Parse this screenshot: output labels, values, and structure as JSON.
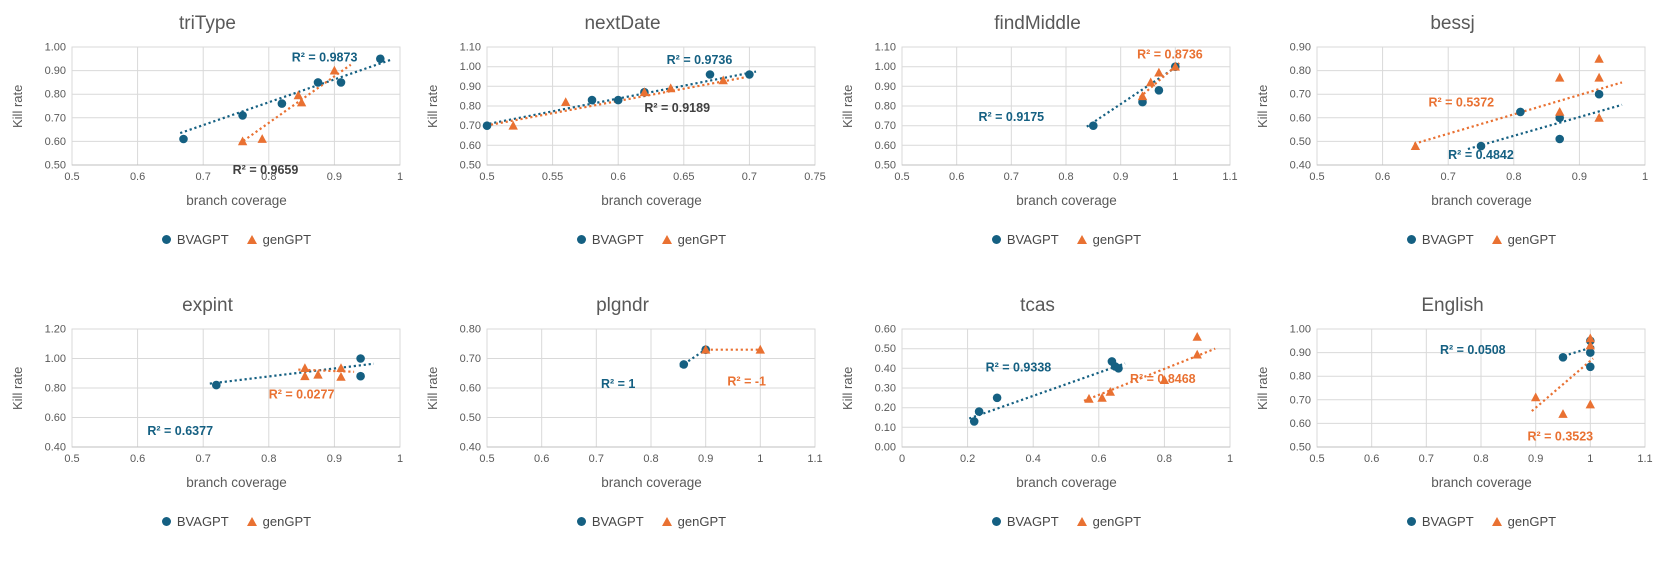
{
  "palette": {
    "bvagpt_blue": "#156082",
    "gengpt_orange": "#E97132",
    "r2_dark_gray": "#404040",
    "grid_line": "#D9D9D9",
    "axis_line": "#BFBFBF",
    "label_gray": "#595959",
    "legend_text": "#474747",
    "background": "#FFFFFF"
  },
  "chart_data": [
    {
      "type": "scatter",
      "title": "triType",
      "xlabel": "branch coverage",
      "ylabel": "Kill rate",
      "xlim": [
        0.5,
        1.0
      ],
      "ylim": [
        0.5,
        1.0
      ],
      "xticks": [
        "0.5",
        "0.6",
        "0.7",
        "0.8",
        "0.9",
        "1"
      ],
      "yticks": [
        "0.50",
        "0.60",
        "0.70",
        "0.80",
        "0.90",
        "1.00"
      ],
      "grid": true,
      "legend_position": "bottom",
      "series": [
        {
          "name": "BVAGPT",
          "marker": "circle",
          "color": "#156082",
          "points": [
            [
              0.67,
              0.61
            ],
            [
              0.76,
              0.71
            ],
            [
              0.82,
              0.76
            ],
            [
              0.875,
              0.85
            ],
            [
              0.91,
              0.85
            ],
            [
              0.97,
              0.95
            ]
          ],
          "trend": {
            "x1": 0.665,
            "y1": 0.635,
            "x2": 0.985,
            "y2": 0.945
          },
          "r2": {
            "text": "R² = 0.9873",
            "x": 0.885,
            "y": 0.955,
            "color": "#156082"
          }
        },
        {
          "name": "genGPT",
          "marker": "triangle",
          "color": "#E97132",
          "points": [
            [
              0.76,
              0.6
            ],
            [
              0.79,
              0.61
            ],
            [
              0.845,
              0.795
            ],
            [
              0.85,
              0.765
            ],
            [
              0.9,
              0.9
            ]
          ],
          "trend": {
            "x1": 0.755,
            "y1": 0.59,
            "x2": 0.925,
            "y2": 0.925
          },
          "r2": {
            "text": "R² = 0.9659",
            "x": 0.795,
            "y": 0.478,
            "color": "#404040"
          }
        }
      ]
    },
    {
      "type": "scatter",
      "title": "nextDate",
      "xlabel": "branch coverage",
      "ylabel": "Kill rate",
      "xlim": [
        0.5,
        0.75
      ],
      "ylim": [
        0.5,
        1.1
      ],
      "xticks": [
        "0.5",
        "0.55",
        "0.6",
        "0.65",
        "0.7",
        "0.75"
      ],
      "yticks": [
        "0.50",
        "0.60",
        "0.70",
        "0.80",
        "0.90",
        "1.00",
        "1.10"
      ],
      "grid": true,
      "legend_position": "bottom",
      "series": [
        {
          "name": "BVAGPT",
          "marker": "circle",
          "color": "#156082",
          "points": [
            [
              0.5,
              0.7
            ],
            [
              0.58,
              0.83
            ],
            [
              0.6,
              0.83
            ],
            [
              0.62,
              0.87
            ],
            [
              0.67,
              0.96
            ],
            [
              0.7,
              0.96
            ]
          ],
          "trend": {
            "x1": 0.498,
            "y1": 0.705,
            "x2": 0.705,
            "y2": 0.975
          },
          "r2": {
            "text": "R² = 0.9736",
            "x": 0.662,
            "y": 1.035,
            "color": "#156082"
          }
        },
        {
          "name": "genGPT",
          "marker": "triangle",
          "color": "#E97132",
          "points": [
            [
              0.52,
              0.7
            ],
            [
              0.56,
              0.82
            ],
            [
              0.62,
              0.87
            ],
            [
              0.64,
              0.89
            ],
            [
              0.68,
              0.93
            ]
          ],
          "trend": {
            "x1": 0.503,
            "y1": 0.705,
            "x2": 0.7,
            "y2": 0.95
          },
          "r2": {
            "text": "R² = 0.9189",
            "x": 0.645,
            "y": 0.79,
            "color": "#404040"
          }
        }
      ]
    },
    {
      "type": "scatter",
      "title": "findMiddle",
      "xlabel": "branch coverage",
      "ylabel": "Kill rate",
      "xlim": [
        0.5,
        1.1
      ],
      "ylim": [
        0.5,
        1.1
      ],
      "xticks": [
        "0.5",
        "0.6",
        "0.7",
        "0.8",
        "0.9",
        "1",
        "1.1"
      ],
      "yticks": [
        "0.50",
        "0.60",
        "0.70",
        "0.80",
        "0.90",
        "1.00",
        "1.10"
      ],
      "grid": true,
      "legend_position": "bottom",
      "series": [
        {
          "name": "BVAGPT",
          "marker": "circle",
          "color": "#156082",
          "points": [
            [
              0.85,
              0.7
            ],
            [
              0.94,
              0.82
            ],
            [
              0.97,
              0.88
            ],
            [
              1.0,
              1.0
            ]
          ],
          "trend": {
            "x1": 0.838,
            "y1": 0.695,
            "x2": 1.005,
            "y2": 1.005
          },
          "r2": {
            "text": "R² = 0.9175",
            "x": 0.7,
            "y": 0.745,
            "color": "#156082"
          }
        },
        {
          "name": "genGPT",
          "marker": "triangle",
          "color": "#E97132",
          "points": [
            [
              0.94,
              0.85
            ],
            [
              0.955,
              0.92
            ],
            [
              0.97,
              0.97
            ],
            [
              1.0,
              1.0
            ]
          ],
          "trend": {
            "x1": 0.935,
            "y1": 0.845,
            "x2": 1.008,
            "y2": 1.02
          },
          "r2": {
            "text": "R² = 0.8736",
            "x": 0.99,
            "y": 1.063,
            "color": "#E97132"
          }
        }
      ]
    },
    {
      "type": "scatter",
      "title": "bessj",
      "xlabel": "branch coverage",
      "ylabel": "Kill rate",
      "xlim": [
        0.5,
        1.0
      ],
      "ylim": [
        0.4,
        0.9
      ],
      "xticks": [
        "0.5",
        "0.6",
        "0.7",
        "0.8",
        "0.9",
        "1"
      ],
      "yticks": [
        "0.40",
        "0.50",
        "0.60",
        "0.70",
        "0.80",
        "0.90"
      ],
      "grid": true,
      "legend_position": "bottom",
      "series": [
        {
          "name": "BVAGPT",
          "marker": "circle",
          "color": "#156082",
          "points": [
            [
              0.75,
              0.48
            ],
            [
              0.81,
              0.625
            ],
            [
              0.87,
              0.6
            ],
            [
              0.87,
              0.51
            ],
            [
              0.93,
              0.7
            ]
          ],
          "trend": {
            "x1": 0.73,
            "y1": 0.468,
            "x2": 0.965,
            "y2": 0.655
          },
          "r2": {
            "text": "R² = 0.4842",
            "x": 0.75,
            "y": 0.443,
            "color": "#156082"
          }
        },
        {
          "name": "genGPT",
          "marker": "triangle",
          "color": "#E97132",
          "points": [
            [
              0.65,
              0.48
            ],
            [
              0.87,
              0.77
            ],
            [
              0.87,
              0.625
            ],
            [
              0.93,
              0.85
            ],
            [
              0.93,
              0.77
            ],
            [
              0.93,
              0.6
            ]
          ],
          "trend": {
            "x1": 0.648,
            "y1": 0.49,
            "x2": 0.965,
            "y2": 0.75
          },
          "r2": {
            "text": "R² = 0.5372",
            "x": 0.72,
            "y": 0.665,
            "color": "#E97132"
          }
        }
      ]
    },
    {
      "type": "scatter",
      "title": "expint",
      "xlabel": "branch coverage",
      "ylabel": "Kill rate",
      "xlim": [
        0.5,
        1.0
      ],
      "ylim": [
        0.4,
        1.2
      ],
      "xticks": [
        "0.5",
        "0.6",
        "0.7",
        "0.8",
        "0.9",
        "1"
      ],
      "yticks": [
        "0.40",
        "0.60",
        "0.80",
        "1.00",
        "1.20"
      ],
      "grid": true,
      "legend_position": "bottom",
      "series": [
        {
          "name": "BVAGPT",
          "marker": "circle",
          "color": "#156082",
          "points": [
            [
              0.72,
              0.82
            ],
            [
              0.94,
              1.0
            ],
            [
              0.94,
              0.88
            ]
          ],
          "trend": {
            "x1": 0.71,
            "y1": 0.83,
            "x2": 0.96,
            "y2": 0.965
          },
          "r2": {
            "text": "R² = 0.6377",
            "x": 0.665,
            "y": 0.51,
            "color": "#156082"
          }
        },
        {
          "name": "genGPT",
          "marker": "triangle",
          "color": "#E97132",
          "points": [
            [
              0.855,
              0.935
            ],
            [
              0.855,
              0.88
            ],
            [
              0.875,
              0.89
            ],
            [
              0.91,
              0.935
            ],
            [
              0.91,
              0.875
            ]
          ],
          "trend": {
            "x1": 0.845,
            "y1": 0.925,
            "x2": 0.93,
            "y2": 0.91
          },
          "r2": {
            "text": "R² = 0.0277",
            "x": 0.85,
            "y": 0.755,
            "color": "#E97132"
          }
        }
      ]
    },
    {
      "type": "scatter",
      "title": "plgndr",
      "xlabel": "branch coverage",
      "ylabel": "Kill rate",
      "xlim": [
        0.5,
        1.1
      ],
      "ylim": [
        0.4,
        0.8
      ],
      "xticks": [
        "0.5",
        "0.6",
        "0.7",
        "0.8",
        "0.9",
        "1",
        "1.1"
      ],
      "yticks": [
        "0.40",
        "0.50",
        "0.60",
        "0.70",
        "0.80"
      ],
      "grid": true,
      "legend_position": "bottom",
      "series": [
        {
          "name": "BVAGPT",
          "marker": "circle",
          "color": "#156082",
          "points": [
            [
              0.86,
              0.68
            ],
            [
              0.9,
              0.73
            ]
          ],
          "trend": {
            "x1": 0.853,
            "y1": 0.672,
            "x2": 0.905,
            "y2": 0.737
          },
          "r2": {
            "text": "R² = 1",
            "x": 0.74,
            "y": 0.613,
            "color": "#156082"
          }
        },
        {
          "name": "genGPT",
          "marker": "triangle",
          "color": "#E97132",
          "points": [
            [
              0.9,
              0.73
            ],
            [
              1.0,
              0.73
            ]
          ],
          "trend": {
            "x1": 0.9,
            "y1": 0.73,
            "x2": 1.0,
            "y2": 0.73
          },
          "r2": {
            "text": "R² = -1",
            "x": 0.975,
            "y": 0.622,
            "color": "#E97132"
          }
        }
      ]
    },
    {
      "type": "scatter",
      "title": "tcas",
      "xlabel": "branch coverage",
      "ylabel": "Kill rate",
      "xlim": [
        0,
        1.0
      ],
      "ylim": [
        0,
        0.6
      ],
      "xticks": [
        "0",
        "0.2",
        "0.4",
        "0.6",
        "0.8",
        "1"
      ],
      "yticks": [
        "0.00",
        "0.10",
        "0.20",
        "0.30",
        "0.40",
        "0.50",
        "0.60"
      ],
      "grid": true,
      "legend_position": "bottom",
      "series": [
        {
          "name": "BVAGPT",
          "marker": "circle",
          "color": "#156082",
          "points": [
            [
              0.22,
              0.13
            ],
            [
              0.235,
              0.18
            ],
            [
              0.29,
              0.25
            ],
            [
              0.64,
              0.435
            ],
            [
              0.65,
              0.41
            ],
            [
              0.66,
              0.4
            ]
          ],
          "trend": {
            "x1": 0.205,
            "y1": 0.145,
            "x2": 0.68,
            "y2": 0.425
          },
          "r2": {
            "text": "R² = 0.9338",
            "x": 0.355,
            "y": 0.405,
            "color": "#156082"
          }
        },
        {
          "name": "genGPT",
          "marker": "triangle",
          "color": "#E97132",
          "points": [
            [
              0.57,
              0.245
            ],
            [
              0.61,
              0.25
            ],
            [
              0.635,
              0.28
            ],
            [
              0.8,
              0.34
            ],
            [
              0.9,
              0.56
            ],
            [
              0.9,
              0.47
            ]
          ],
          "trend": {
            "x1": 0.555,
            "y1": 0.235,
            "x2": 0.955,
            "y2": 0.5
          },
          "r2": {
            "text": "R² = 0.8468",
            "x": 0.795,
            "y": 0.345,
            "color": "#E97132"
          }
        }
      ]
    },
    {
      "type": "scatter",
      "title": "English",
      "xlabel": "branch coverage",
      "ylabel": "Kill rate",
      "xlim": [
        0.5,
        1.1
      ],
      "ylim": [
        0.5,
        1.0
      ],
      "xticks": [
        "0.5",
        "0.6",
        "0.7",
        "0.8",
        "0.9",
        "1",
        "1.1"
      ],
      "yticks": [
        "0.50",
        "0.60",
        "0.70",
        "0.80",
        "0.90",
        "1.00"
      ],
      "grid": true,
      "legend_position": "bottom",
      "series": [
        {
          "name": "BVAGPT",
          "marker": "circle",
          "color": "#156082",
          "points": [
            [
              0.95,
              0.88
            ],
            [
              1.0,
              0.95
            ],
            [
              1.0,
              0.9
            ],
            [
              1.0,
              0.84
            ]
          ],
          "trend": {
            "x1": 0.943,
            "y1": 0.88,
            "x2": 1.007,
            "y2": 0.925
          },
          "r2": {
            "text": "R² = 0.0508",
            "x": 0.785,
            "y": 0.91,
            "color": "#156082"
          }
        },
        {
          "name": "genGPT",
          "marker": "triangle",
          "color": "#E97132",
          "points": [
            [
              0.9,
              0.71
            ],
            [
              0.95,
              0.64
            ],
            [
              1.0,
              0.96
            ],
            [
              1.0,
              0.93
            ],
            [
              1.0,
              0.68
            ]
          ],
          "trend": {
            "x1": 0.893,
            "y1": 0.652,
            "x2": 1.005,
            "y2": 0.875
          },
          "r2": {
            "text": "R² = 0.3523",
            "x": 0.945,
            "y": 0.545,
            "color": "#E97132"
          }
        }
      ]
    }
  ]
}
